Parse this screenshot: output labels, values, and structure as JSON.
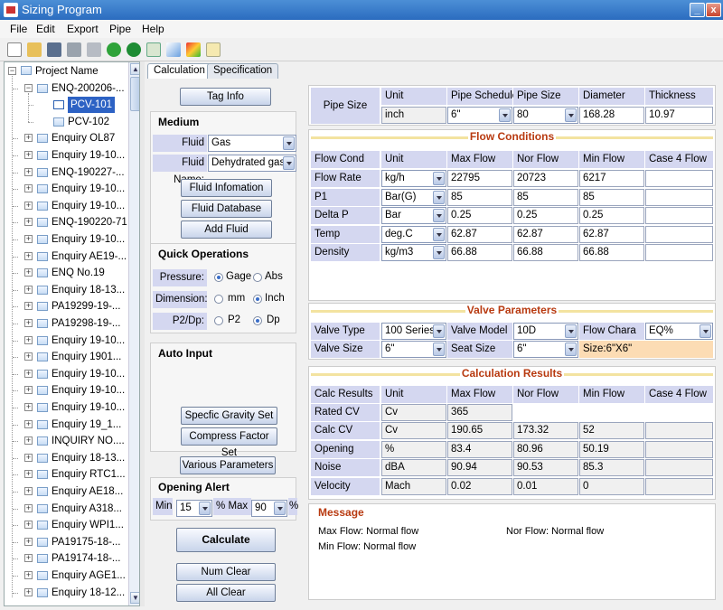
{
  "window": {
    "title": "Sizing Program",
    "min": "_",
    "close": "x"
  },
  "menu": [
    "File",
    "Edit",
    "Export",
    "Pipe",
    "Help"
  ],
  "toolbar_icons": [
    "new-file-icon",
    "open-folder-icon",
    "save-icon",
    "print-icon",
    "print-preview-icon",
    "go-green-icon",
    "go-next-icon",
    "add-doc-icon",
    "chart-icon",
    "palette-icon",
    "edit-icon"
  ],
  "tree": {
    "root": "Project Name",
    "items": [
      "ENQ-200206-...",
      "PCV-101",
      "PCV-102",
      "Enquiry OL87",
      "Enquiry 19-10...",
      "ENQ-190227-...",
      "Enquiry 19-10...",
      "Enquiry 19-10...",
      "ENQ-190220-71",
      "Enquiry 19-10...",
      "Enquiry AE19-...",
      "ENQ No.19",
      "Enquiry 18-13...",
      "PA19299-19-...",
      "PA19298-19-...",
      "Enquiry 19-10...",
      "Enquiry 1901...",
      "Enquiry 19-10...",
      "Enquiry 19-10...",
      "Enquiry 19-10...",
      "Enquiry 19_1...",
      "INQUIRY NO....",
      "Enquiry 18-13...",
      "Enquiry RTC1...",
      "Enquiry AE18...",
      "Enquiry A318...",
      "Enquiry WPI1...",
      "PA19175-18-...",
      "PA19174-18-...",
      "Enquiry AGE1...",
      "Enquiry 18-12..."
    ]
  },
  "tabs": [
    "Calculation",
    "Specification"
  ],
  "left": {
    "tag_info": "Tag Info",
    "medium": {
      "title": "Medium",
      "fluid_type_label": "Fluid Type:",
      "fluid_type": "Gas",
      "fluid_name_label": "Fluid Name:",
      "fluid_name": "Dehydrated gas"
    },
    "fluid_info": "Fluid Infomation",
    "fluid_db": "Fluid Database",
    "add_fluid": "Add Fluid",
    "quick": {
      "title": "Quick Operations",
      "pressure_label": "Pressure:",
      "gage": "Gage",
      "abs": "Abs",
      "dimension_label": "Dimension:",
      "mm": "mm",
      "inch": "Inch",
      "p2dp_label": "P2/Dp:",
      "p2": "P2",
      "dp": "Dp"
    },
    "auto_input": "Auto Input",
    "sg_set": "Specfic Gravity Set",
    "cf_set": "Compress Factor Set",
    "various": "Various Parameters",
    "alert": {
      "title": "Opening Alert",
      "min_label": "Min",
      "min": "15",
      "pct1": "%",
      "max_label": "Max",
      "max": "90",
      "pct2": "%"
    },
    "calculate": "Calculate",
    "num_clear": "Num Clear",
    "all_clear": "All Clear"
  },
  "pipe": {
    "label": "Pipe Size",
    "headers": [
      "Unit",
      "Pipe Schedule",
      "Pipe Size",
      "Diameter",
      "Thickness"
    ],
    "values": [
      "inch",
      "6\"",
      "80",
      "168.28",
      "10.97"
    ]
  },
  "flow": {
    "title": "Flow Conditions",
    "headers": [
      "Flow Cond",
      "Unit",
      "Max Flow",
      "Nor Flow",
      "Min Flow",
      "Case 4 Flow"
    ],
    "rows": [
      [
        "Flow Rate",
        "kg/h",
        "22795",
        "20723",
        "6217",
        ""
      ],
      [
        "P1",
        "Bar(G)",
        "85",
        "85",
        "85",
        ""
      ],
      [
        "Delta P",
        "Bar",
        "0.25",
        "0.25",
        "0.25",
        ""
      ],
      [
        "Temp",
        "deg.C",
        "62.87",
        "62.87",
        "62.87",
        ""
      ],
      [
        "Density",
        "kg/m3",
        "66.88",
        "66.88",
        "66.88",
        ""
      ]
    ]
  },
  "valve": {
    "title": "Valve Parameters",
    "type_label": "Valve Type",
    "type": "100 Series",
    "model_label": "Valve Model",
    "model": "10D",
    "chara_label": "Flow Chara",
    "chara": "EQ%",
    "size_label": "Valve Size",
    "size": "6\"",
    "seat_label": "Seat Size",
    "seat": "6\"",
    "size_note": "Size:6\"X6\""
  },
  "results": {
    "title": "Calculation Results",
    "headers": [
      "Calc Results",
      "Unit",
      "Max Flow",
      "Nor Flow",
      "Min Flow",
      "Case 4 Flow"
    ],
    "rated": [
      "Rated CV",
      "Cv",
      "365"
    ],
    "rows": [
      [
        "Calc CV",
        "Cv",
        "190.65",
        "173.32",
        "52",
        ""
      ],
      [
        "Opening",
        "%",
        "83.4",
        "80.96",
        "50.19",
        ""
      ],
      [
        "Noise",
        "dBA",
        "90.94",
        "90.53",
        "85.3",
        ""
      ],
      [
        "Velocity",
        "Mach",
        "0.02",
        "0.01",
        "0",
        ""
      ]
    ]
  },
  "message": {
    "title": "Message",
    "max": "Max Flow:  Normal flow",
    "nor": "Nor Flow:  Normal flow",
    "min": "Min Flow:  Normal flow"
  },
  "colors": {
    "title_bar": "#2b6cbf",
    "header_bg": "#d4d7f0",
    "section_text": "#b83a10",
    "size_note_bg": "#fcdcb4"
  }
}
